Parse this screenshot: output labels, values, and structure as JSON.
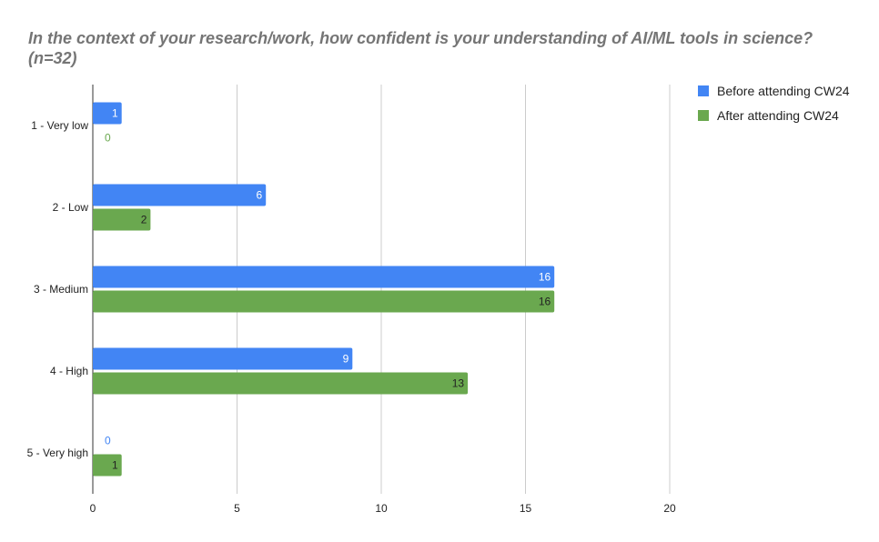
{
  "chart_data": {
    "type": "bar",
    "orientation": "horizontal",
    "title": "In the context of your research/work, how confident is your understanding of AI/ML tools in science? (n=32)",
    "categories": [
      "1 - Very low",
      "2 - Low",
      "3 - Medium",
      "4 - High",
      "5 - Very high"
    ],
    "series": [
      {
        "name": "Before attending CW24",
        "color": "#4285f4",
        "values": [
          1,
          6,
          16,
          9,
          0
        ]
      },
      {
        "name": "After attending CW24",
        "color": "#6aa84f",
        "values": [
          0,
          2,
          16,
          13,
          1
        ]
      }
    ],
    "xlim": [
      0,
      20
    ],
    "xticks": [
      0,
      5,
      10,
      15,
      20
    ],
    "grid": true,
    "legend_position": "right",
    "data_labels": true
  }
}
